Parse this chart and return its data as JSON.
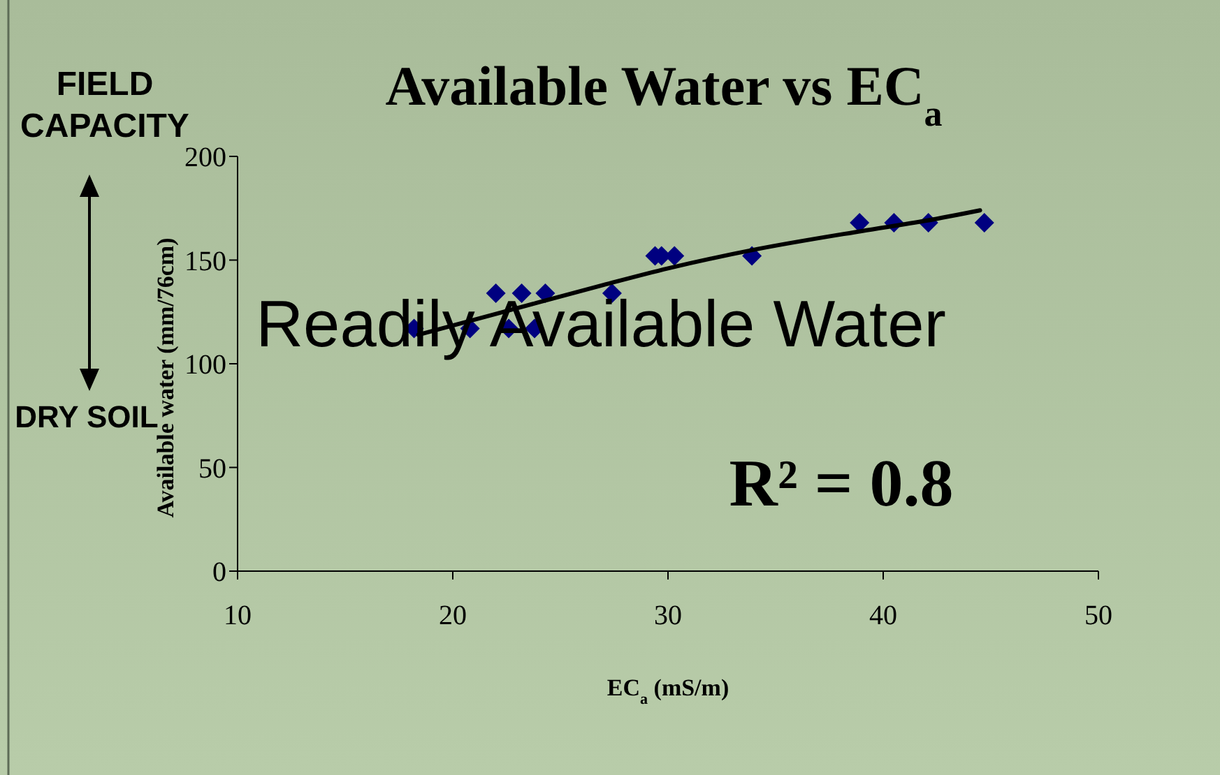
{
  "chart_data": {
    "type": "scatter",
    "title": "Available Water vs EC$_{a}$",
    "xlabel": "EC$_{a}$ (mS/m)",
    "ylabel": "Available water (mm/76cm)",
    "xlim": [
      10,
      50
    ],
    "xticks": [
      10,
      20,
      30,
      40,
      50
    ],
    "ylim": [
      0,
      200
    ],
    "yticks": [
      0,
      50,
      100,
      150,
      200
    ],
    "grid": false,
    "marker": "diamond",
    "series": [
      {
        "type": "scatter",
        "color": "#000080",
        "x": [
          18.2,
          20.8,
          22.0,
          22.6,
          23.2,
          23.8,
          24.3,
          27.4,
          29.4,
          29.7,
          30.3,
          33.9,
          38.9,
          40.5,
          42.1,
          44.7
        ],
        "values": [
          117,
          117,
          134,
          117,
          134,
          117,
          134,
          134,
          152,
          152,
          152,
          152,
          168,
          168,
          168,
          168
        ]
      },
      {
        "type": "line",
        "color": "#000000",
        "line_style": "solid",
        "marker": "none",
        "x": [
          18.4,
          22,
          27,
          30,
          34,
          39,
          42,
          44.5
        ],
        "values": [
          114,
          124,
          138,
          146,
          155,
          164,
          169,
          174
        ]
      }
    ],
    "annotations": [
      "FIELD CAPACITY",
      "DRY SOIL",
      "Readily Available Water",
      "R² = 0.8"
    ]
  }
}
